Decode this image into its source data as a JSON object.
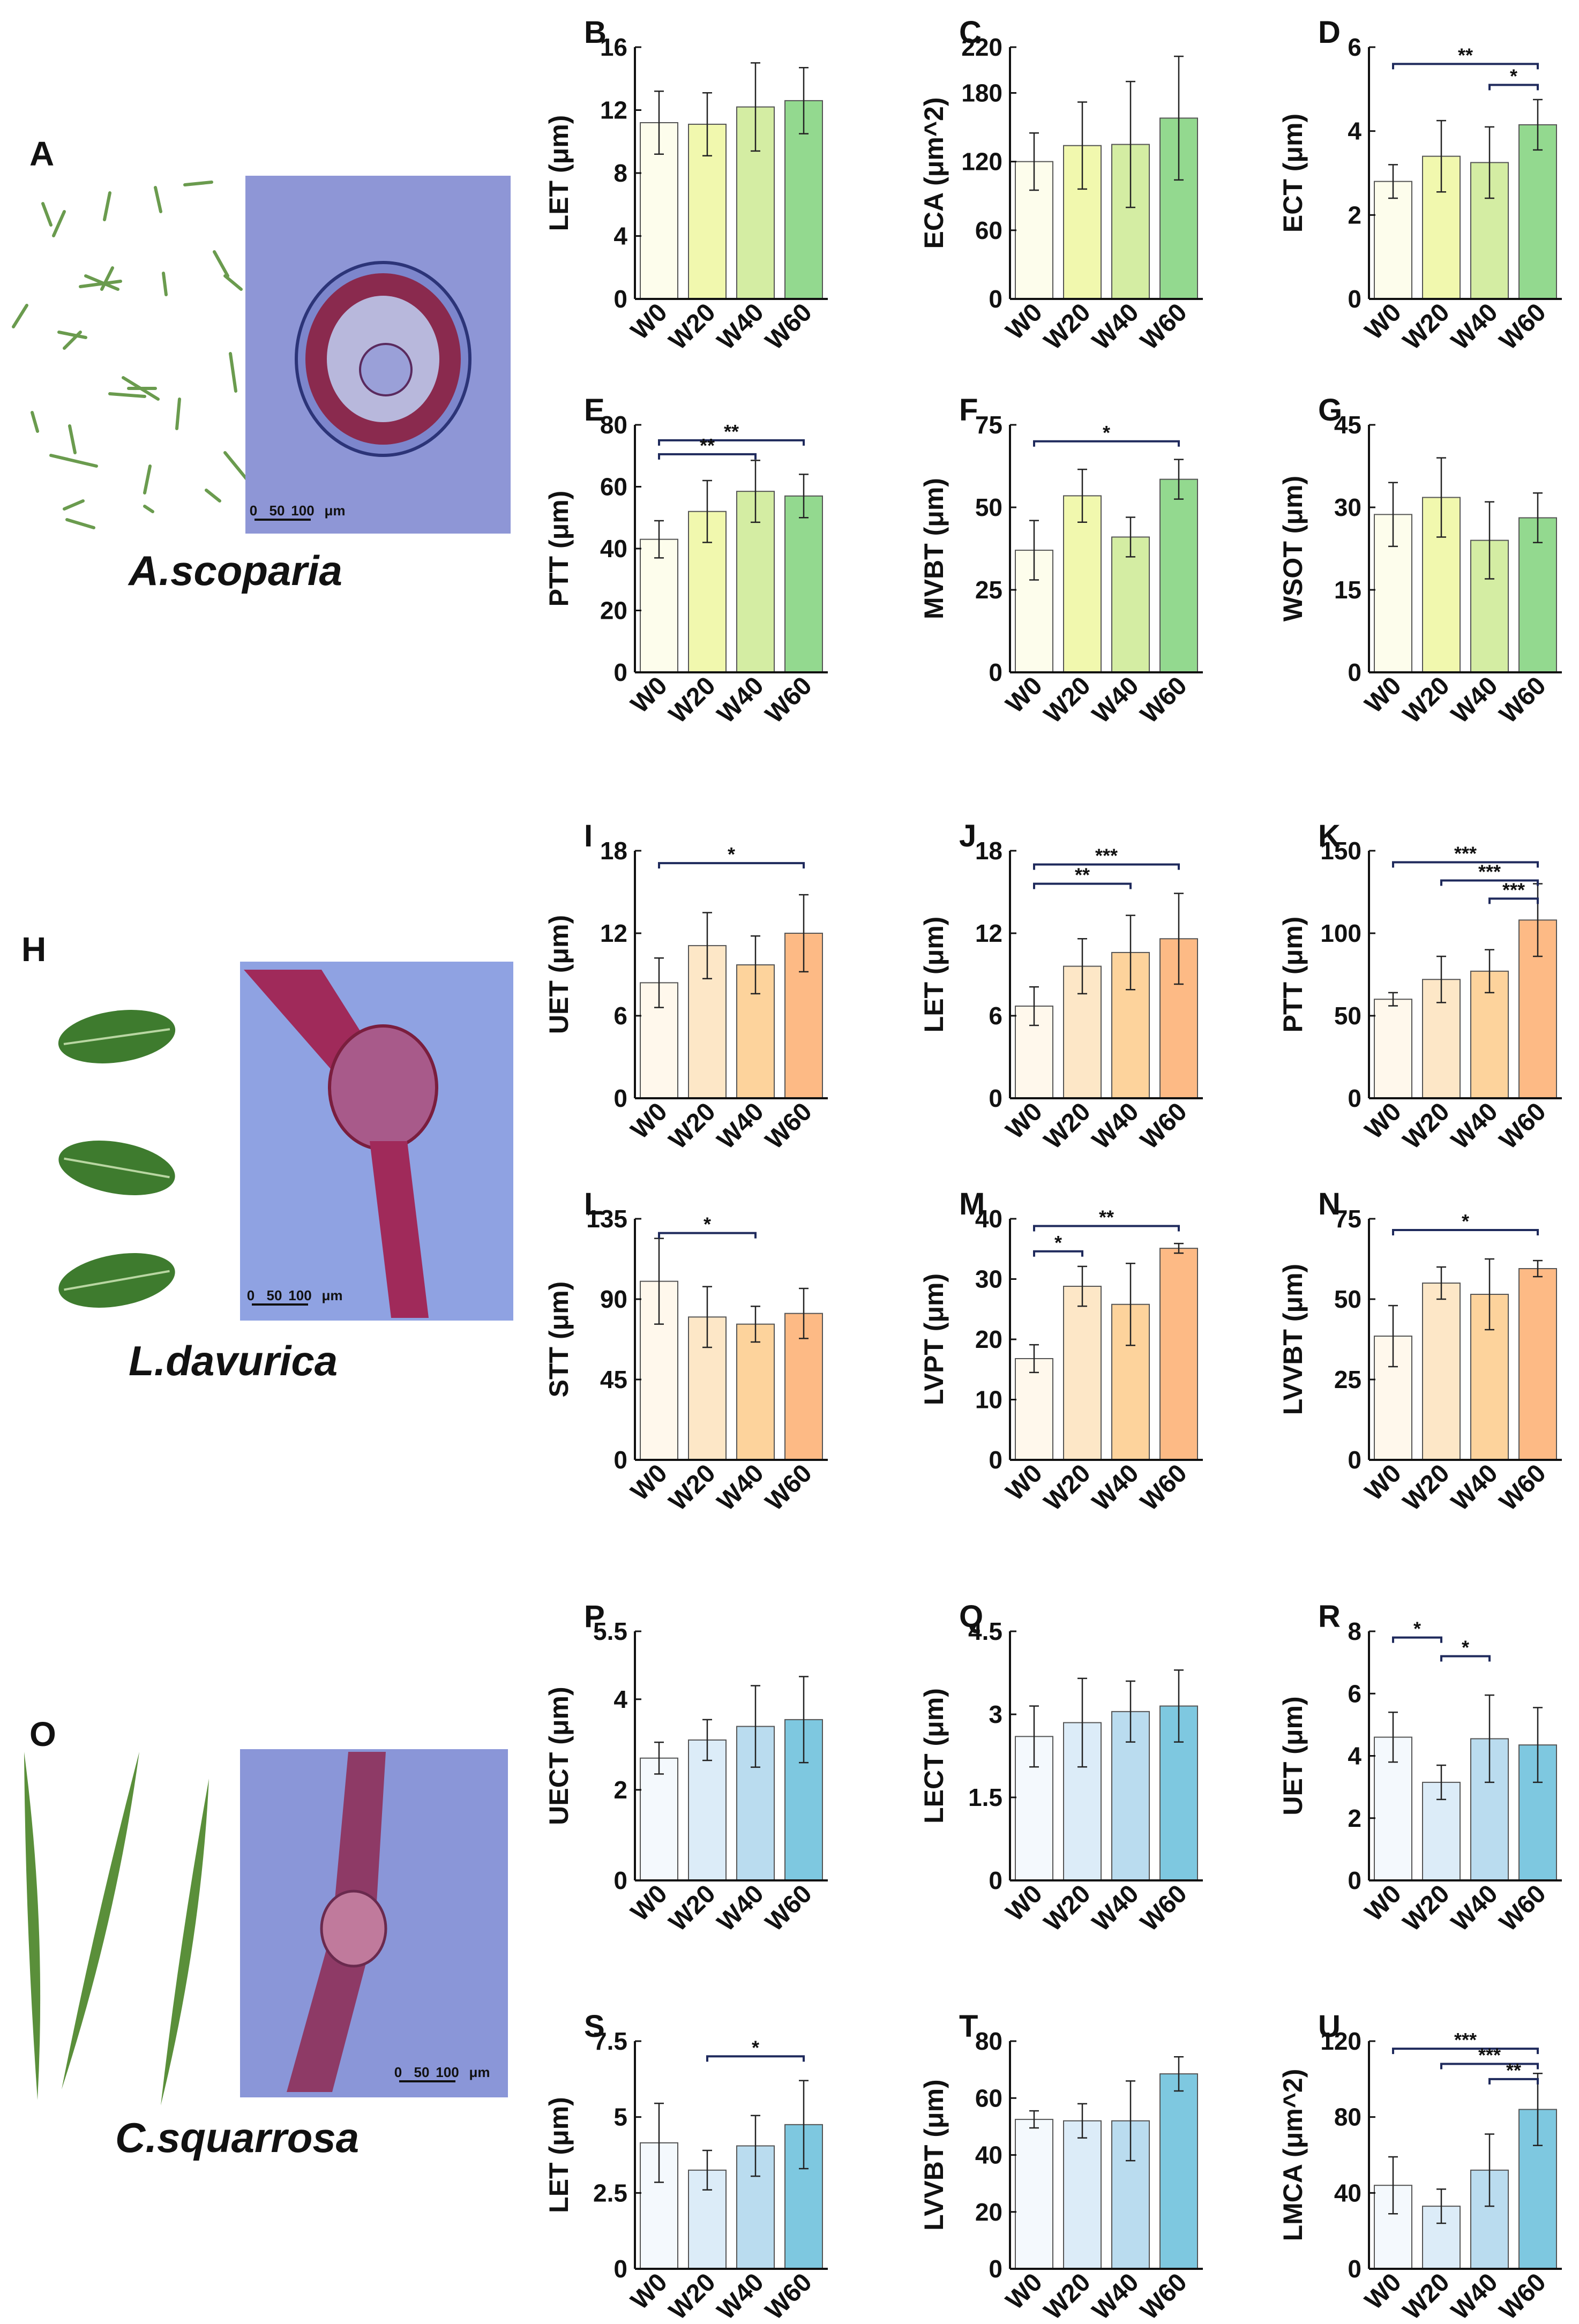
{
  "figure": {
    "categories": [
      "W0",
      "W20",
      "W40",
      "W60"
    ],
    "scale_bar_label": "0 50 100 μm",
    "scale_bar_ticks": [
      "0",
      "50",
      "100",
      "μm"
    ],
    "palettes": {
      "green": [
        "#fdfdec",
        "#f1f8ae",
        "#d4eda3",
        "#93d98f"
      ],
      "orange": [
        "#fff8ec",
        "#fde7c7",
        "#fdd39c",
        "#fdba85"
      ],
      "blue": [
        "#f4f9fd",
        "#dcecf8",
        "#badcef",
        "#7ec8e0"
      ]
    },
    "sections": [
      {
        "letter": "A",
        "species": "A.scoparia",
        "photo_type": "needles"
      },
      {
        "letter": "H",
        "species": "L.davurica",
        "photo_type": "leaves"
      },
      {
        "letter": "O",
        "species": "C.squarrosa",
        "photo_type": "blades"
      }
    ]
  },
  "chart_data": [
    {
      "letter": "B",
      "type": "bar",
      "ylabel": "LET (μm)",
      "ylim": [
        0,
        16
      ],
      "ticks": [
        0,
        4,
        8,
        12,
        16
      ],
      "categories": [
        "W0",
        "W20",
        "W40",
        "W60"
      ],
      "values": [
        11.2,
        11.1,
        12.2,
        12.6
      ],
      "errors": [
        2.0,
        2.0,
        2.8,
        2.1
      ],
      "palette": "green",
      "sig": []
    },
    {
      "letter": "C",
      "type": "bar",
      "ylabel": "ECA (μm^2)",
      "ylim": [
        0,
        220
      ],
      "ticks": [
        0,
        60,
        120,
        180,
        220
      ],
      "categories": [
        "W0",
        "W20",
        "W40",
        "W60"
      ],
      "values": [
        120,
        134,
        135,
        158
      ],
      "errors": [
        25,
        38,
        55,
        54
      ],
      "palette": "green",
      "sig": []
    },
    {
      "letter": "D",
      "type": "bar",
      "ylabel": "ECT (μm)",
      "ylim": [
        0,
        6
      ],
      "ticks": [
        0,
        2,
        4,
        6
      ],
      "categories": [
        "W0",
        "W20",
        "W40",
        "W60"
      ],
      "values": [
        2.8,
        3.4,
        3.25,
        4.15
      ],
      "errors": [
        0.4,
        0.85,
        0.85,
        0.6
      ],
      "palette": "green",
      "sig": [
        {
          "from": 0,
          "to": 3,
          "y": 5.6,
          "label": "**"
        },
        {
          "from": 2,
          "to": 3,
          "y": 5.1,
          "label": "*"
        }
      ]
    },
    {
      "letter": "E",
      "type": "bar",
      "ylabel": "PTT (μm)",
      "ylim": [
        0,
        80
      ],
      "ticks": [
        0,
        20,
        40,
        60,
        80
      ],
      "categories": [
        "W0",
        "W20",
        "W40",
        "W60"
      ],
      "values": [
        43,
        52,
        58.5,
        57
      ],
      "errors": [
        6,
        10,
        10,
        7
      ],
      "palette": "green",
      "sig": [
        {
          "from": 0,
          "to": 3,
          "y": 75,
          "label": "**"
        },
        {
          "from": 0,
          "to": 2,
          "y": 70.5,
          "label": "**"
        }
      ]
    },
    {
      "letter": "F",
      "type": "bar",
      "ylabel": "MVBT (μm)",
      "ylim": [
        0,
        75
      ],
      "ticks": [
        0,
        25,
        50,
        75
      ],
      "categories": [
        "W0",
        "W20",
        "W40",
        "W60"
      ],
      "values": [
        37,
        53.5,
        41,
        58.5
      ],
      "errors": [
        9,
        8,
        6,
        6
      ],
      "palette": "green",
      "sig": [
        {
          "from": 0,
          "to": 3,
          "y": 70,
          "label": "*"
        }
      ]
    },
    {
      "letter": "G",
      "type": "bar",
      "ylabel": "WSOT (μm)",
      "ylim": [
        0,
        45
      ],
      "ticks": [
        0,
        15,
        30,
        45
      ],
      "categories": [
        "W0",
        "W20",
        "W40",
        "W60"
      ],
      "values": [
        28.7,
        31.8,
        24,
        28.1
      ],
      "errors": [
        5.8,
        7.2,
        7,
        4.5
      ],
      "palette": "green",
      "sig": []
    },
    {
      "letter": "I",
      "type": "bar",
      "ylabel": "UET (μm)",
      "ylim": [
        0,
        18
      ],
      "ticks": [
        0,
        6,
        12,
        18
      ],
      "categories": [
        "W0",
        "W20",
        "W40",
        "W60"
      ],
      "values": [
        8.4,
        11.1,
        9.7,
        12.0
      ],
      "errors": [
        1.8,
        2.4,
        2.1,
        2.8
      ],
      "palette": "orange",
      "sig": [
        {
          "from": 0,
          "to": 3,
          "y": 17.1,
          "label": "*"
        }
      ]
    },
    {
      "letter": "J",
      "type": "bar",
      "ylabel": "LET (μm)",
      "ylim": [
        0,
        18
      ],
      "ticks": [
        0,
        6,
        12,
        18
      ],
      "categories": [
        "W0",
        "W20",
        "W40",
        "W60"
      ],
      "values": [
        6.7,
        9.6,
        10.6,
        11.6
      ],
      "errors": [
        1.4,
        2.0,
        2.7,
        3.3
      ],
      "palette": "orange",
      "sig": [
        {
          "from": 0,
          "to": 3,
          "y": 17.0,
          "label": "***"
        },
        {
          "from": 0,
          "to": 2,
          "y": 15.6,
          "label": "**"
        }
      ]
    },
    {
      "letter": "K",
      "type": "bar",
      "ylabel": "PTT (μm)",
      "ylim": [
        0,
        150
      ],
      "ticks": [
        0,
        50,
        100,
        150
      ],
      "categories": [
        "W0",
        "W20",
        "W40",
        "W60"
      ],
      "values": [
        60,
        72,
        77,
        108
      ],
      "errors": [
        4,
        14,
        13,
        22
      ],
      "palette": "orange",
      "sig": [
        {
          "from": 0,
          "to": 3,
          "y": 143,
          "label": "***"
        },
        {
          "from": 1,
          "to": 3,
          "y": 132,
          "label": "***"
        },
        {
          "from": 2,
          "to": 3,
          "y": 121,
          "label": "***"
        }
      ]
    },
    {
      "letter": "L",
      "type": "bar",
      "ylabel": "STT (μm)",
      "ylim": [
        0,
        135
      ],
      "ticks": [
        0,
        45,
        90,
        135
      ],
      "categories": [
        "W0",
        "W20",
        "W40",
        "W60"
      ],
      "values": [
        100,
        80,
        76,
        82
      ],
      "errors": [
        24,
        17,
        10,
        14
      ],
      "palette": "orange",
      "sig": [
        {
          "from": 0,
          "to": 2,
          "y": 127,
          "label": "*"
        }
      ]
    },
    {
      "letter": "M",
      "type": "bar",
      "ylabel": "LVPT (μm)",
      "ylim": [
        0,
        40
      ],
      "ticks": [
        0,
        10,
        20,
        30,
        40
      ],
      "categories": [
        "W0",
        "W20",
        "W40",
        "W60"
      ],
      "values": [
        16.8,
        28.8,
        25.8,
        35.1
      ],
      "errors": [
        2.3,
        3.3,
        6.8,
        0.8
      ],
      "palette": "orange",
      "sig": [
        {
          "from": 0,
          "to": 3,
          "y": 38.8,
          "label": "**"
        },
        {
          "from": 0,
          "to": 1,
          "y": 34.6,
          "label": "*"
        }
      ]
    },
    {
      "letter": "N",
      "type": "bar",
      "ylabel": "LVVBT (μm)",
      "ylim": [
        0,
        75
      ],
      "ticks": [
        0,
        25,
        50,
        75
      ],
      "categories": [
        "W0",
        "W20",
        "W40",
        "W60"
      ],
      "values": [
        38.5,
        55,
        51.5,
        59.5
      ],
      "errors": [
        9.5,
        5,
        11,
        2.5
      ],
      "palette": "orange",
      "sig": [
        {
          "from": 0,
          "to": 3,
          "y": 71.5,
          "label": "*"
        }
      ]
    },
    {
      "letter": "P",
      "type": "bar",
      "ylabel": "UECT (μm)",
      "ylim": [
        0,
        5.5
      ],
      "ticks": [
        0,
        2,
        4,
        5.5
      ],
      "categories": [
        "W0",
        "W20",
        "W40",
        "W60"
      ],
      "values": [
        2.7,
        3.1,
        3.4,
        3.55
      ],
      "errors": [
        0.35,
        0.45,
        0.9,
        0.95
      ],
      "palette": "blue",
      "sig": []
    },
    {
      "letter": "Q",
      "type": "bar",
      "ylabel": "LECT (μm)",
      "ylim": [
        0,
        4.5
      ],
      "ticks": [
        0,
        1.5,
        3,
        4.5
      ],
      "categories": [
        "W0",
        "W20",
        "W40",
        "W60"
      ],
      "values": [
        2.6,
        2.85,
        3.05,
        3.15
      ],
      "errors": [
        0.55,
        0.8,
        0.55,
        0.65
      ],
      "palette": "blue",
      "sig": []
    },
    {
      "letter": "R",
      "type": "bar",
      "ylabel": "UET (μm)",
      "ylim": [
        0,
        8
      ],
      "ticks": [
        0,
        2,
        4,
        6,
        8
      ],
      "categories": [
        "W0",
        "W20",
        "W40",
        "W60"
      ],
      "values": [
        4.6,
        3.15,
        4.55,
        4.35
      ],
      "errors": [
        0.8,
        0.55,
        1.4,
        1.2
      ],
      "palette": "blue",
      "sig": [
        {
          "from": 0,
          "to": 1,
          "y": 7.8,
          "label": "*"
        },
        {
          "from": 1,
          "to": 2,
          "y": 7.2,
          "label": "*"
        }
      ]
    },
    {
      "letter": "S",
      "type": "bar",
      "ylabel": "LET (μm)",
      "ylim": [
        0,
        7.5
      ],
      "ticks": [
        0,
        2.5,
        5,
        7.5
      ],
      "categories": [
        "W0",
        "W20",
        "W40",
        "W60"
      ],
      "values": [
        4.15,
        3.25,
        4.05,
        4.75
      ],
      "errors": [
        1.3,
        0.65,
        1.0,
        1.45
      ],
      "palette": "blue",
      "sig": [
        {
          "from": 1,
          "to": 3,
          "y": 7.0,
          "label": "*"
        }
      ]
    },
    {
      "letter": "T",
      "type": "bar",
      "ylabel": "LVVBT (μm)",
      "ylim": [
        0,
        80
      ],
      "ticks": [
        0,
        20,
        40,
        60,
        80
      ],
      "categories": [
        "W0",
        "W20",
        "W40",
        "W60"
      ],
      "values": [
        52.5,
        52,
        52,
        68.5
      ],
      "errors": [
        3,
        6,
        14,
        6
      ],
      "palette": "blue",
      "sig": []
    },
    {
      "letter": "U",
      "type": "bar",
      "ylabel": "LMCA (μm^2)",
      "ylim": [
        0,
        120
      ],
      "ticks": [
        0,
        40,
        80,
        120
      ],
      "categories": [
        "W0",
        "W20",
        "W40",
        "W60"
      ],
      "values": [
        44,
        33,
        52,
        84
      ],
      "errors": [
        15,
        9,
        19,
        19
      ],
      "palette": "blue",
      "sig": [
        {
          "from": 0,
          "to": 3,
          "y": 116,
          "label": "***"
        },
        {
          "from": 1,
          "to": 3,
          "y": 108,
          "label": "***"
        },
        {
          "from": 2,
          "to": 3,
          "y": 100,
          "label": "**"
        }
      ]
    }
  ]
}
